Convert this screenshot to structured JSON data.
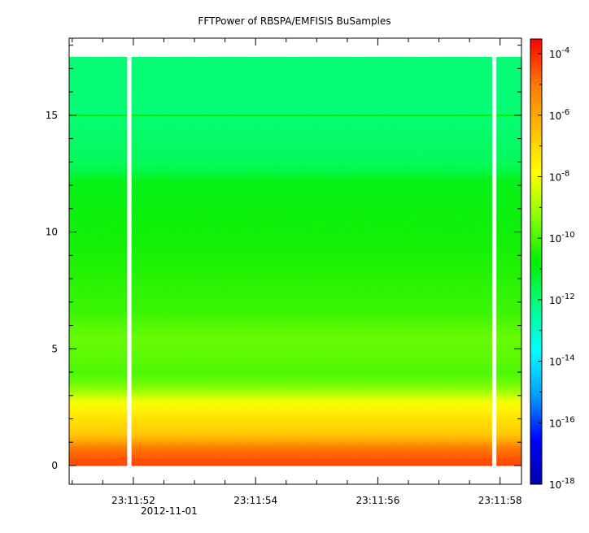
{
  "chart_data": {
    "type": "heatmap",
    "title": "FFTPower of RBSPA/EMFISIS  BuSamples",
    "xlabel": "",
    "ylabel": "",
    "date_label": "2012-11-01",
    "x_range": [
      "23:11:50.95",
      "23:11:58.35"
    ],
    "x_ticks": [
      "23:11:52",
      "23:11:54",
      "23:11:56",
      "23:11:58"
    ],
    "ylim": [
      -0.8,
      18.3
    ],
    "y_ticks": [
      0,
      5,
      10,
      15
    ],
    "colorbar": {
      "scale": "log",
      "range": [
        1e-18,
        0.0003
      ],
      "tick_values": [
        -4,
        -6,
        -8,
        -10,
        -12,
        -14,
        -16,
        -18
      ],
      "tick_labels": [
        "10-4",
        "10-6",
        "10-8",
        "10-10",
        "10-12",
        "10-14",
        "10-16",
        "10-18"
      ],
      "colors": [
        "#0000aa",
        "#0000ff",
        "#00a0ff",
        "#00ffff",
        "#00ff88",
        "#00ee00",
        "#88ff00",
        "#ffff00",
        "#ffbb00",
        "#ff7700",
        "#ff0000"
      ]
    },
    "data_gaps": [
      {
        "start": "23:11:51.90",
        "end": "23:11:51.97"
      },
      {
        "start": "23:11:57.87",
        "end": "23:11:57.94"
      }
    ],
    "spectrum_bands": [
      {
        "y_from": 0.0,
        "y_to": 0.4,
        "log_power": -4.4
      },
      {
        "y_from": 0.4,
        "y_to": 1.0,
        "log_power": -4.9
      },
      {
        "y_from": 1.0,
        "y_to": 1.6,
        "log_power": -6.6
      },
      {
        "y_from": 1.6,
        "y_to": 2.4,
        "log_power": -7.2
      },
      {
        "y_from": 2.4,
        "y_to": 3.0,
        "log_power": -8.0
      },
      {
        "y_from": 3.0,
        "y_to": 3.5,
        "log_power": -9.2
      },
      {
        "y_from": 3.5,
        "y_to": 4.5,
        "log_power": -10.0
      },
      {
        "y_from": 4.5,
        "y_to": 6.5,
        "log_power": -9.7
      },
      {
        "y_from": 6.5,
        "y_to": 12.2,
        "log_power": -10.6
      },
      {
        "y_from": 12.2,
        "y_to": 12.9,
        "log_power": -11.4
      },
      {
        "y_from": 12.9,
        "y_to": 17.5,
        "log_power": -12.0
      }
    ],
    "emission_lines": [
      {
        "y": 15.0,
        "log_power": -10.8
      }
    ],
    "data_ylim": [
      0,
      17.5
    ]
  }
}
